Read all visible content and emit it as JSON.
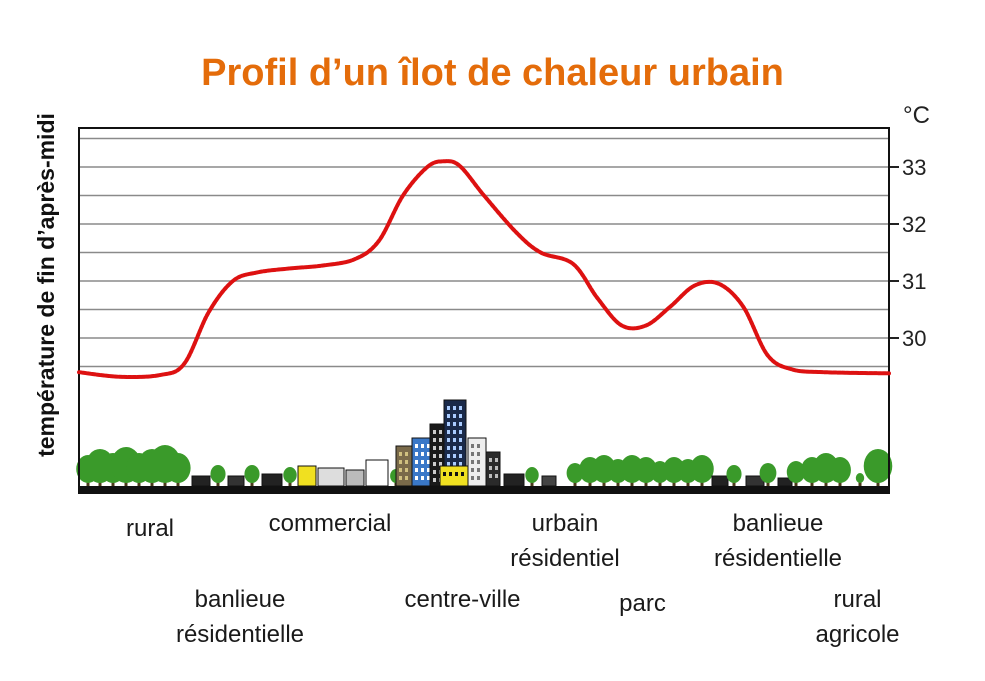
{
  "chart_data": {
    "type": "line",
    "title": "Profil d’un îlot de chaleur urbain",
    "ylabel": "température de fin d’après-midi",
    "unit": "°C",
    "ylim": [
      29.4,
      33.6
    ],
    "y_ticks": [
      30,
      31,
      32,
      33
    ],
    "grid": true,
    "series_color": "#dd1111",
    "series": [
      {
        "values": [
          [
            0.0,
            29.4
          ],
          [
            0.05,
            29.32
          ],
          [
            0.1,
            29.35
          ],
          [
            0.13,
            29.55
          ],
          [
            0.16,
            30.45
          ],
          [
            0.19,
            31.0
          ],
          [
            0.22,
            31.15
          ],
          [
            0.26,
            31.22
          ],
          [
            0.3,
            31.27
          ],
          [
            0.34,
            31.38
          ],
          [
            0.37,
            31.7
          ],
          [
            0.4,
            32.5
          ],
          [
            0.43,
            33.0
          ],
          [
            0.45,
            33.1
          ],
          [
            0.47,
            33.02
          ],
          [
            0.5,
            32.5
          ],
          [
            0.54,
            31.85
          ],
          [
            0.57,
            31.5
          ],
          [
            0.61,
            31.3
          ],
          [
            0.64,
            30.7
          ],
          [
            0.67,
            30.22
          ],
          [
            0.7,
            30.22
          ],
          [
            0.73,
            30.55
          ],
          [
            0.76,
            30.92
          ],
          [
            0.79,
            30.95
          ],
          [
            0.82,
            30.55
          ],
          [
            0.85,
            29.7
          ],
          [
            0.88,
            29.45
          ],
          [
            0.92,
            29.4
          ],
          [
            1.0,
            29.38
          ]
        ]
      }
    ],
    "zones": [
      {
        "label": "rural"
      },
      {
        "label": "banlieue\nrésidentielle"
      },
      {
        "label": "commercial"
      },
      {
        "label": "centre-ville"
      },
      {
        "label": "urbain\nrésidentiel"
      },
      {
        "label": "parc"
      },
      {
        "label": "banlieue\nrésidentielle"
      },
      {
        "label": "rural\nagricole"
      }
    ]
  },
  "colors": {
    "title": "#e46c0a",
    "curve": "#dd1111",
    "tree": "#3a9a2a",
    "ground": "#111111",
    "building_blue": "#3a78c8",
    "building_yellow": "#f0e020"
  }
}
